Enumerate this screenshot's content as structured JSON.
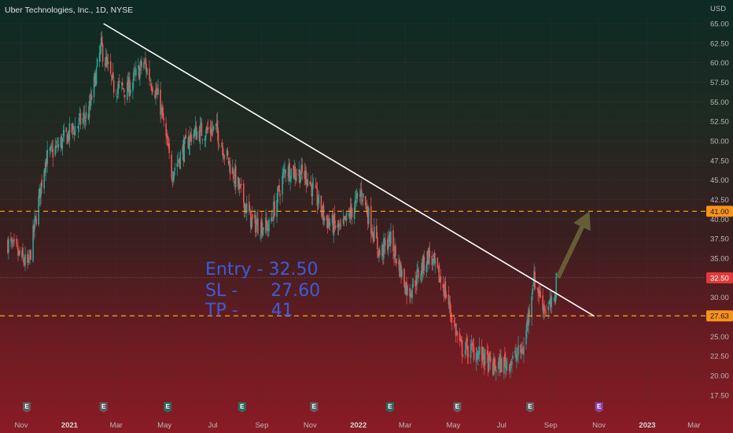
{
  "chart_data": {
    "type": "candlestick",
    "title": "Uber Technologies, Inc., 1D, NYSE",
    "currency": "USD",
    "y_ticks": [
      "65.00",
      "62.50",
      "60.00",
      "57.50",
      "55.00",
      "52.50",
      "50.00",
      "47.50",
      "45.00",
      "42.50",
      "40.00",
      "37.50",
      "35.00",
      "32.50",
      "30.00",
      "27.50",
      "25.00",
      "22.50",
      "20.00",
      "17.50"
    ],
    "ylim": [
      16.0,
      66.5
    ],
    "x_ticks": [
      {
        "label": "Nov",
        "date": "2020-11-01",
        "bold": false
      },
      {
        "label": "2021",
        "date": "2021-01-01",
        "bold": true
      },
      {
        "label": "Mar",
        "date": "2021-03-01",
        "bold": false
      },
      {
        "label": "May",
        "date": "2021-05-01",
        "bold": false
      },
      {
        "label": "Jul",
        "date": "2021-07-01",
        "bold": false
      },
      {
        "label": "Sep",
        "date": "2021-09-01",
        "bold": false
      },
      {
        "label": "Nov",
        "date": "2021-11-01",
        "bold": false
      },
      {
        "label": "2022",
        "date": "2022-01-01",
        "bold": true
      },
      {
        "label": "Mar",
        "date": "2022-03-01",
        "bold": false
      },
      {
        "label": "May",
        "date": "2022-05-01",
        "bold": false
      },
      {
        "label": "Jul",
        "date": "2022-07-01",
        "bold": false
      },
      {
        "label": "Sep",
        "date": "2022-09-01",
        "bold": false
      },
      {
        "label": "Nov",
        "date": "2022-11-01",
        "bold": false
      },
      {
        "label": "2023",
        "date": "2023-01-01",
        "bold": true
      },
      {
        "label": "Mar",
        "date": "2023-03-01",
        "bold": false
      }
    ],
    "price_path": [
      {
        "date": "2020-10-15",
        "price": 37.0
      },
      {
        "date": "2020-11-10",
        "price": 34.0
      },
      {
        "date": "2020-12-01",
        "price": 47.5
      },
      {
        "date": "2021-01-01",
        "price": 51.0
      },
      {
        "date": "2021-01-25",
        "price": 53.5
      },
      {
        "date": "2021-02-10",
        "price": 62.0
      },
      {
        "date": "2021-02-25",
        "price": 57.0
      },
      {
        "date": "2021-03-15",
        "price": 56.5
      },
      {
        "date": "2021-04-05",
        "price": 60.0
      },
      {
        "date": "2021-04-25",
        "price": 55.0
      },
      {
        "date": "2021-05-10",
        "price": 46.0
      },
      {
        "date": "2021-06-05",
        "price": 51.0
      },
      {
        "date": "2021-07-05",
        "price": 51.5
      },
      {
        "date": "2021-07-30",
        "price": 45.0
      },
      {
        "date": "2021-08-20",
        "price": 39.5
      },
      {
        "date": "2021-09-10",
        "price": 39.0
      },
      {
        "date": "2021-10-01",
        "price": 46.5
      },
      {
        "date": "2021-10-28",
        "price": 45.5
      },
      {
        "date": "2021-11-20",
        "price": 40.0
      },
      {
        "date": "2021-12-10",
        "price": 38.5
      },
      {
        "date": "2022-01-05",
        "price": 43.5
      },
      {
        "date": "2022-01-28",
        "price": 35.5
      },
      {
        "date": "2022-02-10",
        "price": 37.5
      },
      {
        "date": "2022-03-05",
        "price": 30.5
      },
      {
        "date": "2022-03-31",
        "price": 35.5
      },
      {
        "date": "2022-04-20",
        "price": 31.0
      },
      {
        "date": "2022-05-10",
        "price": 23.5
      },
      {
        "date": "2022-06-01",
        "price": 23.0
      },
      {
        "date": "2022-06-20",
        "price": 21.0
      },
      {
        "date": "2022-07-15",
        "price": 22.0
      },
      {
        "date": "2022-07-29",
        "price": 23.5
      },
      {
        "date": "2022-08-10",
        "price": 32.5
      },
      {
        "date": "2022-08-25",
        "price": 28.5
      },
      {
        "date": "2022-09-05",
        "price": 29.0
      },
      {
        "date": "2022-09-08",
        "price": 32.5
      }
    ],
    "trendline": {
      "start": {
        "date": "2021-02-13",
        "price": 65.0
      },
      "end": {
        "date": "2022-10-26",
        "price": 27.6
      },
      "color": "#ffffff"
    },
    "horizontal_levels": [
      {
        "price": 41.0,
        "label": "41.00",
        "color": "#f7931a"
      },
      {
        "price": 27.63,
        "label": "27.63",
        "color": "#f7931a"
      }
    ],
    "current_price": {
      "price": 32.5,
      "label": "32.50",
      "color": "#e03b3b"
    },
    "arrow": {
      "from": {
        "date": "2022-09-10",
        "price": 32.5
      },
      "to": {
        "date": "2022-10-20",
        "price": 41.0
      },
      "color": "#6b6a3a"
    },
    "annotations": [
      {
        "text": "Entry - 32.50"
      },
      {
        "text": "SL -      27.60"
      },
      {
        "text": "TP -      41"
      }
    ],
    "earnings_markers": [
      {
        "date": "2020-11-08",
        "label": "E",
        "color": "#606060"
      },
      {
        "date": "2021-02-13",
        "label": "E",
        "color": "#606060"
      },
      {
        "date": "2021-05-05",
        "label": "E",
        "color": "#2e6b5f"
      },
      {
        "date": "2021-08-07",
        "label": "E",
        "color": "#2e6b5f"
      },
      {
        "date": "2021-11-06",
        "label": "E",
        "color": "#606060"
      },
      {
        "date": "2022-02-10",
        "label": "E",
        "color": "#2e6b5f"
      },
      {
        "date": "2022-05-06",
        "label": "E",
        "color": "#606060"
      },
      {
        "date": "2022-08-06",
        "label": "E",
        "color": "#606060"
      },
      {
        "date": "2022-11-01",
        "label": "E",
        "color": "#8e44ad"
      }
    ],
    "colors": {
      "up": "#26a69a",
      "down": "#ef5350",
      "grid": "#3a3a3a",
      "text": "#b8b8b8"
    }
  }
}
